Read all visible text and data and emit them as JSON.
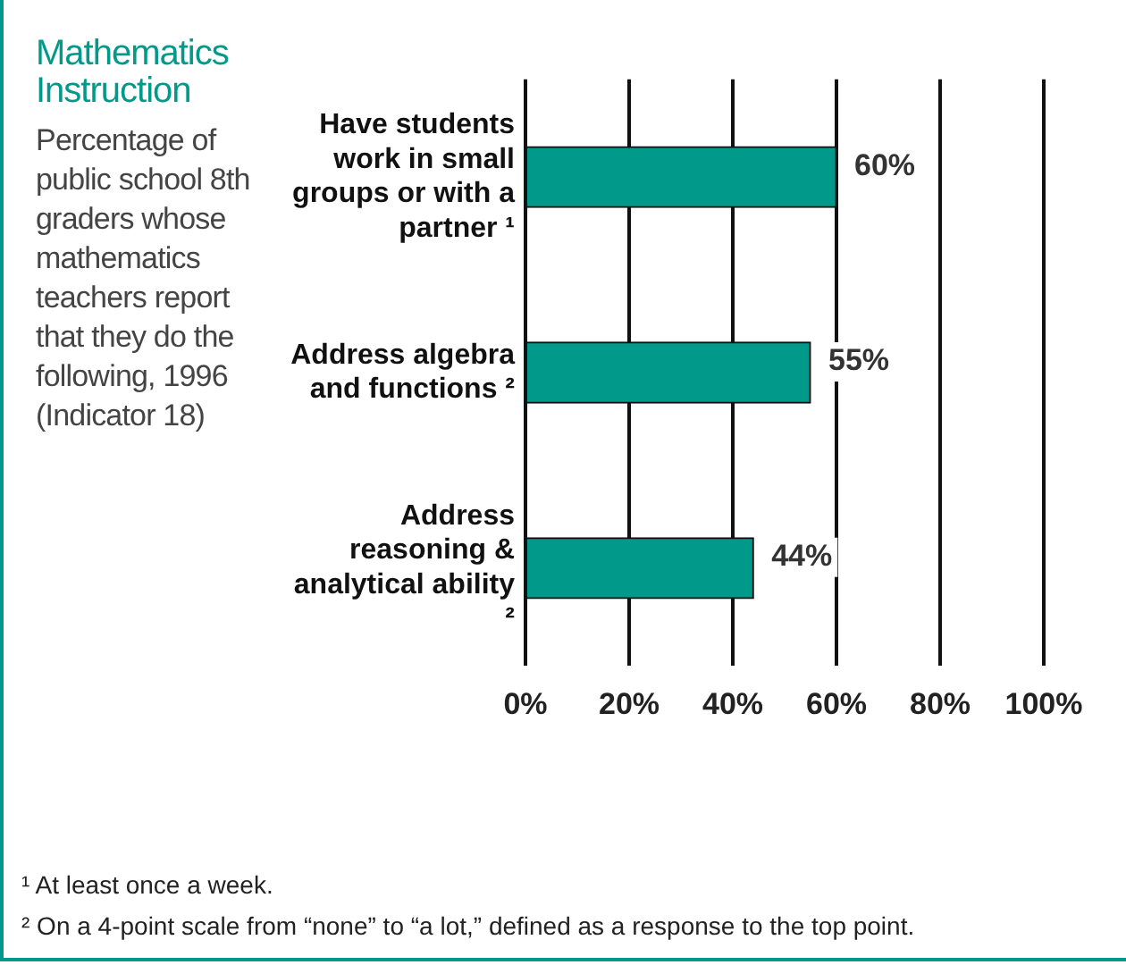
{
  "chart_data": {
    "type": "bar",
    "orientation": "horizontal",
    "title": "Mathematics Instruction",
    "subtitle": "Percentage of public school 8th graders whose mathematics teachers report that they do the following, 1996 (Indicator 18)",
    "categories": [
      "Have students work in small groups or with a partner ¹",
      "Address algebra and functions ²",
      "Address reasoning & analytical ability ²"
    ],
    "values": [
      60,
      55,
      44
    ],
    "color": "#00998a",
    "value_labels": [
      "60%",
      "55%",
      "44%"
    ],
    "xlim": [
      0,
      100
    ],
    "xticks": [
      {
        "value": 0,
        "label": "0%"
      },
      {
        "value": 20,
        "label": "20%"
      },
      {
        "value": 40,
        "label": "40%"
      },
      {
        "value": 60,
        "label": "60%"
      },
      {
        "value": 80,
        "label": "80%"
      },
      {
        "value": 100,
        "label": "100%"
      }
    ],
    "grid": "x",
    "annotations": [
      "¹  At least once a week.",
      "²  On a 4-point scale from “none” to “a lot,” defined as a response to the top point."
    ]
  }
}
